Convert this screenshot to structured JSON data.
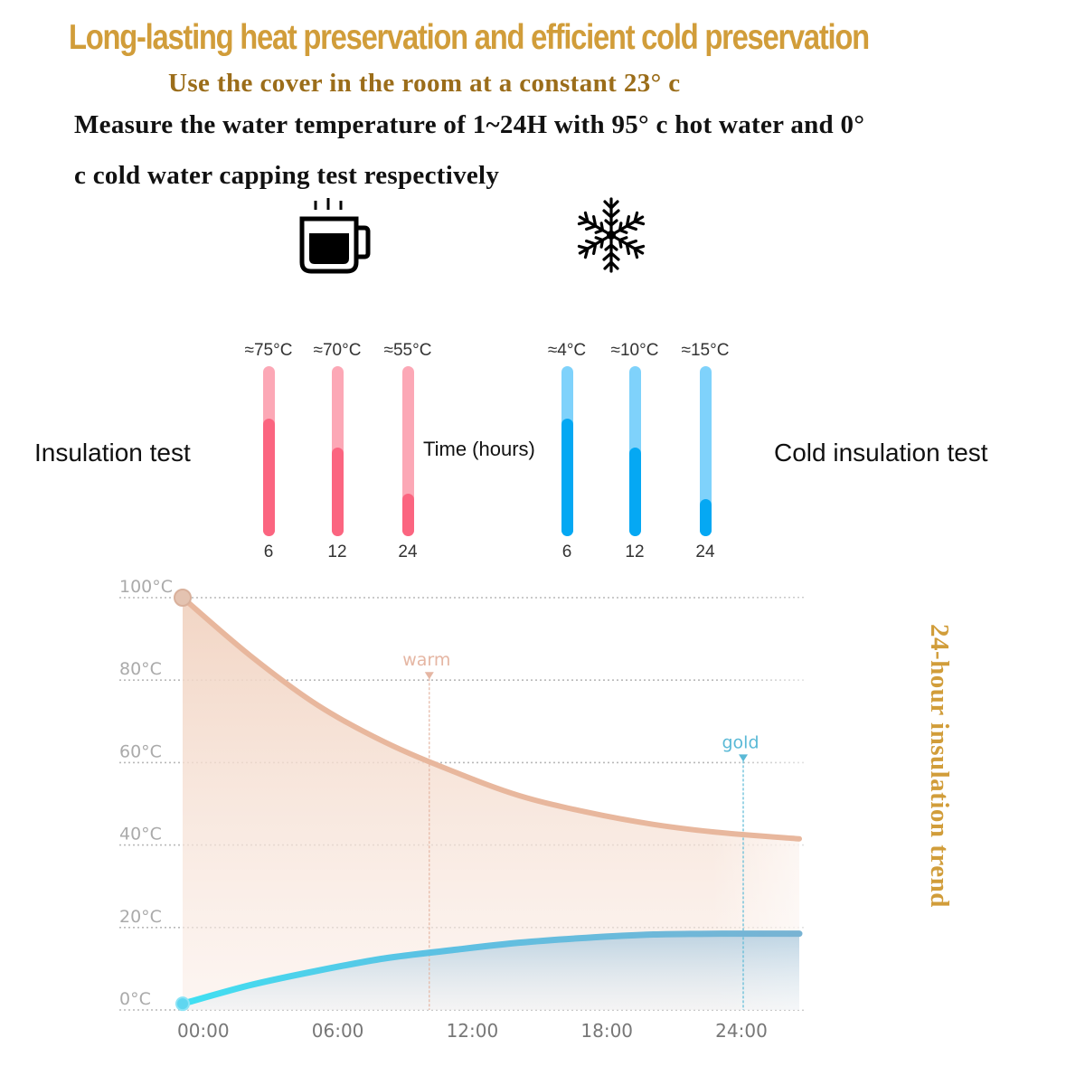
{
  "header": {
    "title": "Long-lasting heat preservation and efficient cold preservation",
    "subtitle": "Use the cover in the room at a constant 23°  c",
    "description_line1": "Measure the water temperature of 1~24H with 95°  c hot water and 0°",
    "description_line2": "c cold water capping test respectively"
  },
  "icons": {
    "hot": "hot-coffee-mug-icon",
    "cold": "snowflake-icon"
  },
  "labels": {
    "insulation_test": "Insulation test",
    "cold_insulation_test": "Cold insulation test",
    "time_hours": "Time (hours)",
    "trend_title": "24-hour insulation trend"
  },
  "colors": {
    "title_gold": "#d19d3a",
    "subtitle_brown": "#9b6d1a",
    "hot_fill": "#fb6580",
    "hot_track": "#fca8b6",
    "cold_fill": "#05a8f3",
    "cold_track": "#7fd2fb",
    "hot_curve": "#e8b79d",
    "cold_curve": "#4cc6e6",
    "warm_marker": "#e5b6a3",
    "gold_marker": "#5ab9d6",
    "axis_text": "#aaaaaa"
  },
  "chart_data": [
    {
      "type": "bar",
      "title": "Insulation test",
      "xlabel": "Time (hours)",
      "categories": [
        "6",
        "12",
        "24"
      ],
      "value_labels": [
        "≈75°C",
        "≈70°C",
        "≈55°C"
      ],
      "values_fill_fraction": [
        0.69,
        0.52,
        0.25
      ],
      "unit": "°C"
    },
    {
      "type": "bar",
      "title": "Cold insulation test",
      "xlabel": "Time (hours)",
      "categories": [
        "6",
        "12",
        "24"
      ],
      "value_labels": [
        "≈4°C",
        "≈10°C",
        "≈15°C"
      ],
      "values_fill_fraction": [
        0.69,
        0.52,
        0.22
      ],
      "unit": "°C"
    },
    {
      "type": "area",
      "title": "24-hour insulation trend",
      "xlabel": "",
      "ylabel": "",
      "x_ticks": [
        "00:00",
        "06:00",
        "12:00",
        "18:00",
        "24:00"
      ],
      "y_ticks": [
        "0°C",
        "20°C",
        "40°C",
        "60°C",
        "80°C",
        "100°C"
      ],
      "xlim": [
        -1,
        27
      ],
      "ylim": [
        0,
        100
      ],
      "grid": true,
      "series": [
        {
          "name": "hot",
          "x": [
            -1,
            2,
            5,
            8,
            11,
            14,
            17,
            20,
            23,
            26.5
          ],
          "y": [
            100,
            86,
            74,
            65,
            58,
            52,
            48,
            45,
            43,
            41.5
          ]
        },
        {
          "name": "cold",
          "x": [
            -1,
            2,
            5,
            8,
            11,
            14,
            17,
            20,
            23,
            26.5
          ],
          "y": [
            1.5,
            6,
            9.5,
            12.5,
            14.5,
            16.3,
            17.5,
            18.3,
            18.5,
            18.5
          ]
        }
      ],
      "annotations": [
        {
          "label": "warm",
          "x": 10,
          "series": "hot"
        },
        {
          "label": "gold",
          "x": 24,
          "series": "cold"
        }
      ]
    }
  ]
}
